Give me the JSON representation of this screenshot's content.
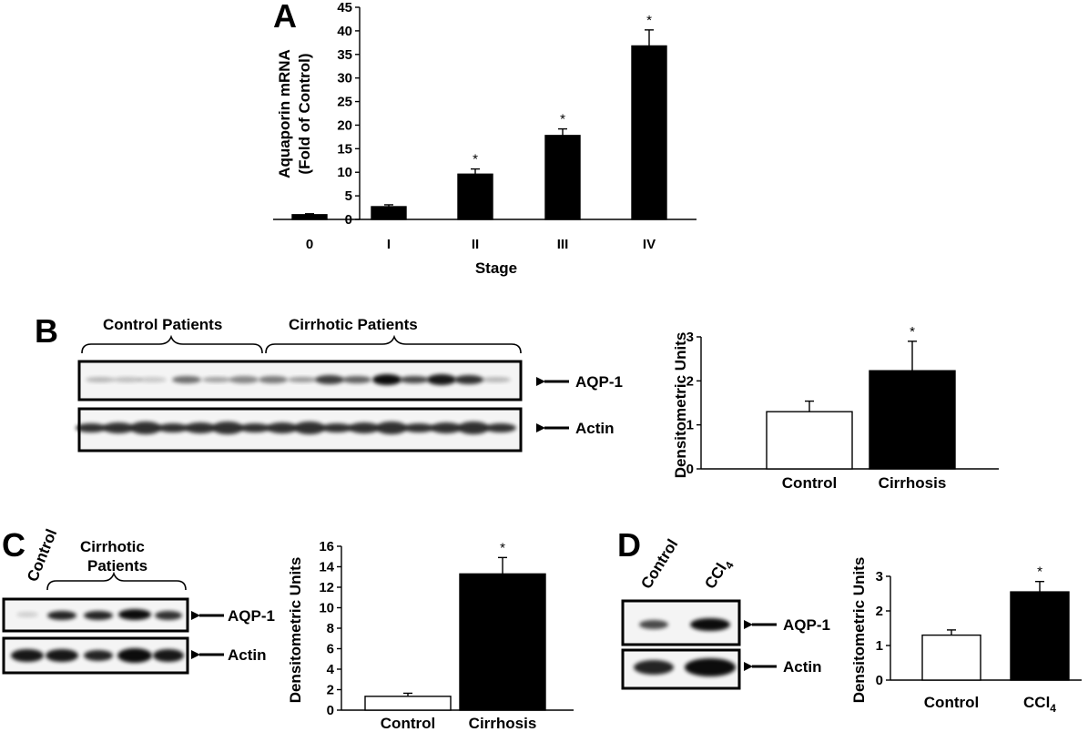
{
  "figure": {
    "panels": [
      "A",
      "B",
      "C",
      "D"
    ]
  },
  "blots": {
    "B": {
      "group_labels": [
        "Control Patients",
        "Cirrhotic Patients"
      ],
      "band_labels": [
        "AQP-1",
        "Actin"
      ]
    },
    "C": {
      "group_labels": [
        "Control",
        "Cirrhotic",
        "Patients"
      ],
      "band_labels": [
        "AQP-1",
        "Actin"
      ]
    },
    "D": {
      "lane_labels": [
        "Control",
        "CCl",
        "4"
      ],
      "band_labels": [
        "AQP-1",
        "Actin"
      ]
    }
  },
  "chart_data": [
    {
      "panel": "A",
      "type": "bar",
      "categories": [
        "0",
        "I",
        "II",
        "III",
        "IV"
      ],
      "values": [
        1,
        2.7,
        9.6,
        17.8,
        36.8
      ],
      "errors": [
        0.2,
        0.4,
        1.1,
        1.4,
        3.4
      ],
      "significance": [
        "",
        "",
        "*",
        "*",
        "*"
      ],
      "xlabel": "Stage",
      "ylabel": [
        "Aquaporin mRNA",
        "(Fold of Control)"
      ],
      "ylim": [
        0,
        45
      ],
      "yticks": [
        0,
        5,
        10,
        15,
        20,
        25,
        30,
        35,
        40,
        45
      ],
      "bar_colors": [
        "#000000",
        "#000000",
        "#000000",
        "#000000",
        "#000000"
      ],
      "grid": false
    },
    {
      "panel": "B",
      "type": "bar",
      "categories": [
        "Control",
        "Cirrhosis"
      ],
      "values": [
        1.3,
        2.23
      ],
      "errors": [
        0.24,
        0.67
      ],
      "significance": [
        "",
        "*"
      ],
      "xlabel": "",
      "ylabel": "Densitometric Units",
      "ylim": [
        0,
        3
      ],
      "yticks": [
        0,
        1,
        2,
        3
      ],
      "bar_colors": [
        "#ffffff",
        "#000000"
      ],
      "grid": false
    },
    {
      "panel": "C",
      "type": "bar",
      "categories": [
        "Control",
        "Cirrhosis"
      ],
      "values": [
        1.35,
        13.3
      ],
      "errors": [
        0.3,
        1.6
      ],
      "significance": [
        "",
        "*"
      ],
      "xlabel": "",
      "ylabel": "Densitometric Units",
      "ylim": [
        0,
        16
      ],
      "yticks": [
        0,
        2,
        4,
        6,
        8,
        10,
        12,
        14,
        16
      ],
      "bar_colors": [
        "#ffffff",
        "#000000"
      ],
      "grid": false
    },
    {
      "panel": "D",
      "type": "bar",
      "categories": [
        "Control",
        "CCl4"
      ],
      "values": [
        1.3,
        2.55
      ],
      "errors": [
        0.15,
        0.3
      ],
      "significance": [
        "",
        "*"
      ],
      "xlabel": "",
      "ylabel": "Densitometric Units",
      "ylim": [
        0,
        3
      ],
      "yticks": [
        0,
        1,
        2,
        3
      ],
      "bar_colors": [
        "#ffffff",
        "#000000"
      ],
      "grid": false
    }
  ]
}
